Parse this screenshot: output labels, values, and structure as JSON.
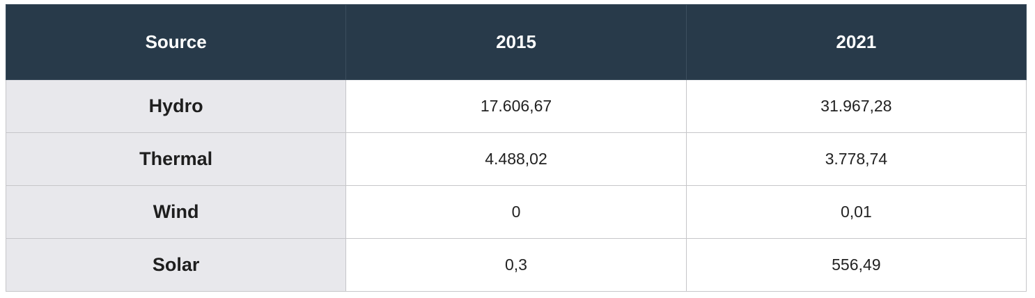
{
  "table": {
    "header": [
      "Source",
      "2015",
      "2021"
    ],
    "rows": [
      [
        "Hydro",
        "17.606,67",
        "31.967,28"
      ],
      [
        "Thermal",
        "4.488,02",
        "3.778,74"
      ],
      [
        "Wind",
        "0",
        "0,01"
      ],
      [
        "Solar",
        "0,3",
        "556,49"
      ]
    ]
  }
}
